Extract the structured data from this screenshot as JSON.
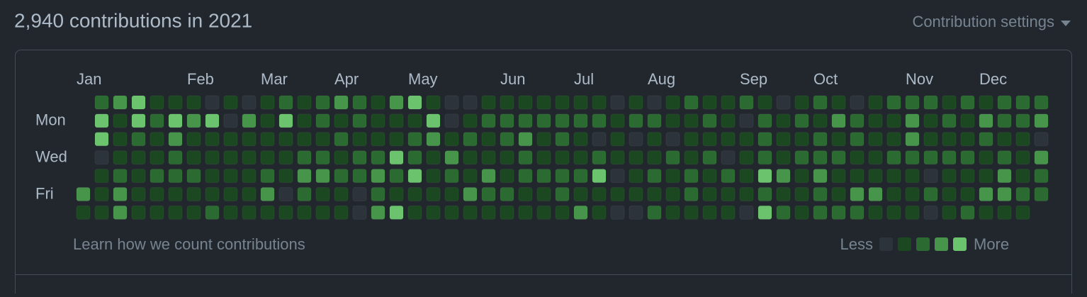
{
  "header": {
    "title": "2,940 contributions in 2021",
    "settings": "Contribution settings"
  },
  "graph": {
    "months": [
      "Jan",
      "Feb",
      "Mar",
      "Apr",
      "May",
      "Jun",
      "Jul",
      "Aug",
      "Sep",
      "Oct",
      "Nov",
      "Dec"
    ],
    "day_labels": [
      "Mon",
      "Wed",
      "Fri"
    ],
    "colors": [
      "#2d333b",
      "#1b4721",
      "#2b6a30",
      "#46954a",
      "#6bc46d"
    ],
    "rows": [
      [
        null,
        2,
        3,
        4,
        1,
        1,
        1,
        0,
        1,
        0,
        1,
        2,
        1,
        2,
        3,
        2,
        1,
        3,
        4,
        1,
        0,
        0,
        1,
        1,
        1,
        1,
        1,
        1,
        1,
        0,
        1,
        0,
        1,
        2,
        1,
        1,
        2,
        1,
        0,
        1,
        2,
        1,
        0,
        1,
        2,
        2,
        2,
        1,
        2,
        1,
        2,
        2,
        2
      ],
      [
        null,
        4,
        1,
        4,
        2,
        4,
        3,
        4,
        0,
        3,
        1,
        4,
        1,
        2,
        1,
        2,
        1,
        1,
        1,
        4,
        0,
        1,
        2,
        2,
        2,
        2,
        2,
        2,
        2,
        1,
        2,
        2,
        1,
        1,
        2,
        1,
        0,
        2,
        1,
        2,
        1,
        3,
        2,
        1,
        1,
        3,
        1,
        2,
        1,
        3,
        2,
        2,
        3
      ],
      [
        null,
        4,
        1,
        2,
        1,
        3,
        1,
        1,
        1,
        1,
        1,
        1,
        1,
        1,
        2,
        1,
        1,
        1,
        2,
        3,
        1,
        2,
        1,
        2,
        3,
        1,
        2,
        1,
        0,
        1,
        0,
        1,
        0,
        1,
        1,
        1,
        1,
        2,
        1,
        1,
        2,
        1,
        2,
        1,
        1,
        3,
        1,
        1,
        1,
        2,
        1,
        1,
        0
      ],
      [
        null,
        0,
        1,
        1,
        1,
        2,
        1,
        1,
        1,
        1,
        1,
        1,
        2,
        2,
        1,
        2,
        2,
        4,
        2,
        1,
        3,
        1,
        1,
        1,
        2,
        1,
        1,
        1,
        2,
        1,
        1,
        1,
        2,
        1,
        2,
        0,
        1,
        2,
        1,
        2,
        2,
        2,
        1,
        1,
        2,
        2,
        2,
        2,
        2,
        1,
        2,
        1,
        3
      ],
      [
        null,
        1,
        2,
        1,
        2,
        2,
        2,
        1,
        1,
        1,
        2,
        1,
        3,
        3,
        2,
        2,
        3,
        2,
        4,
        1,
        2,
        1,
        3,
        1,
        2,
        2,
        2,
        2,
        4,
        0,
        1,
        2,
        1,
        2,
        1,
        2,
        1,
        4,
        3,
        1,
        3,
        1,
        1,
        1,
        1,
        1,
        0,
        1,
        1,
        1,
        3,
        1,
        2
      ],
      [
        3,
        1,
        3,
        1,
        1,
        1,
        1,
        1,
        1,
        1,
        3,
        0,
        2,
        1,
        1,
        0,
        2,
        1,
        1,
        1,
        1,
        3,
        2,
        2,
        1,
        1,
        2,
        1,
        1,
        1,
        1,
        1,
        1,
        2,
        1,
        1,
        1,
        2,
        1,
        1,
        2,
        1,
        3,
        3,
        1,
        1,
        2,
        1,
        1,
        3,
        3,
        2,
        2
      ],
      [
        1,
        1,
        3,
        1,
        1,
        1,
        1,
        2,
        1,
        1,
        1,
        1,
        1,
        1,
        1,
        0,
        3,
        4,
        1,
        1,
        1,
        1,
        1,
        1,
        1,
        1,
        1,
        3,
        1,
        0,
        0,
        2,
        1,
        1,
        1,
        1,
        0,
        4,
        2,
        1,
        2,
        2,
        2,
        1,
        1,
        1,
        0,
        1,
        2,
        1,
        1,
        1,
        null
      ]
    ]
  },
  "footer": {
    "link": "Learn how we count contributions",
    "less": "Less",
    "more": "More",
    "legend_levels": [
      0,
      1,
      2,
      3,
      4
    ]
  }
}
